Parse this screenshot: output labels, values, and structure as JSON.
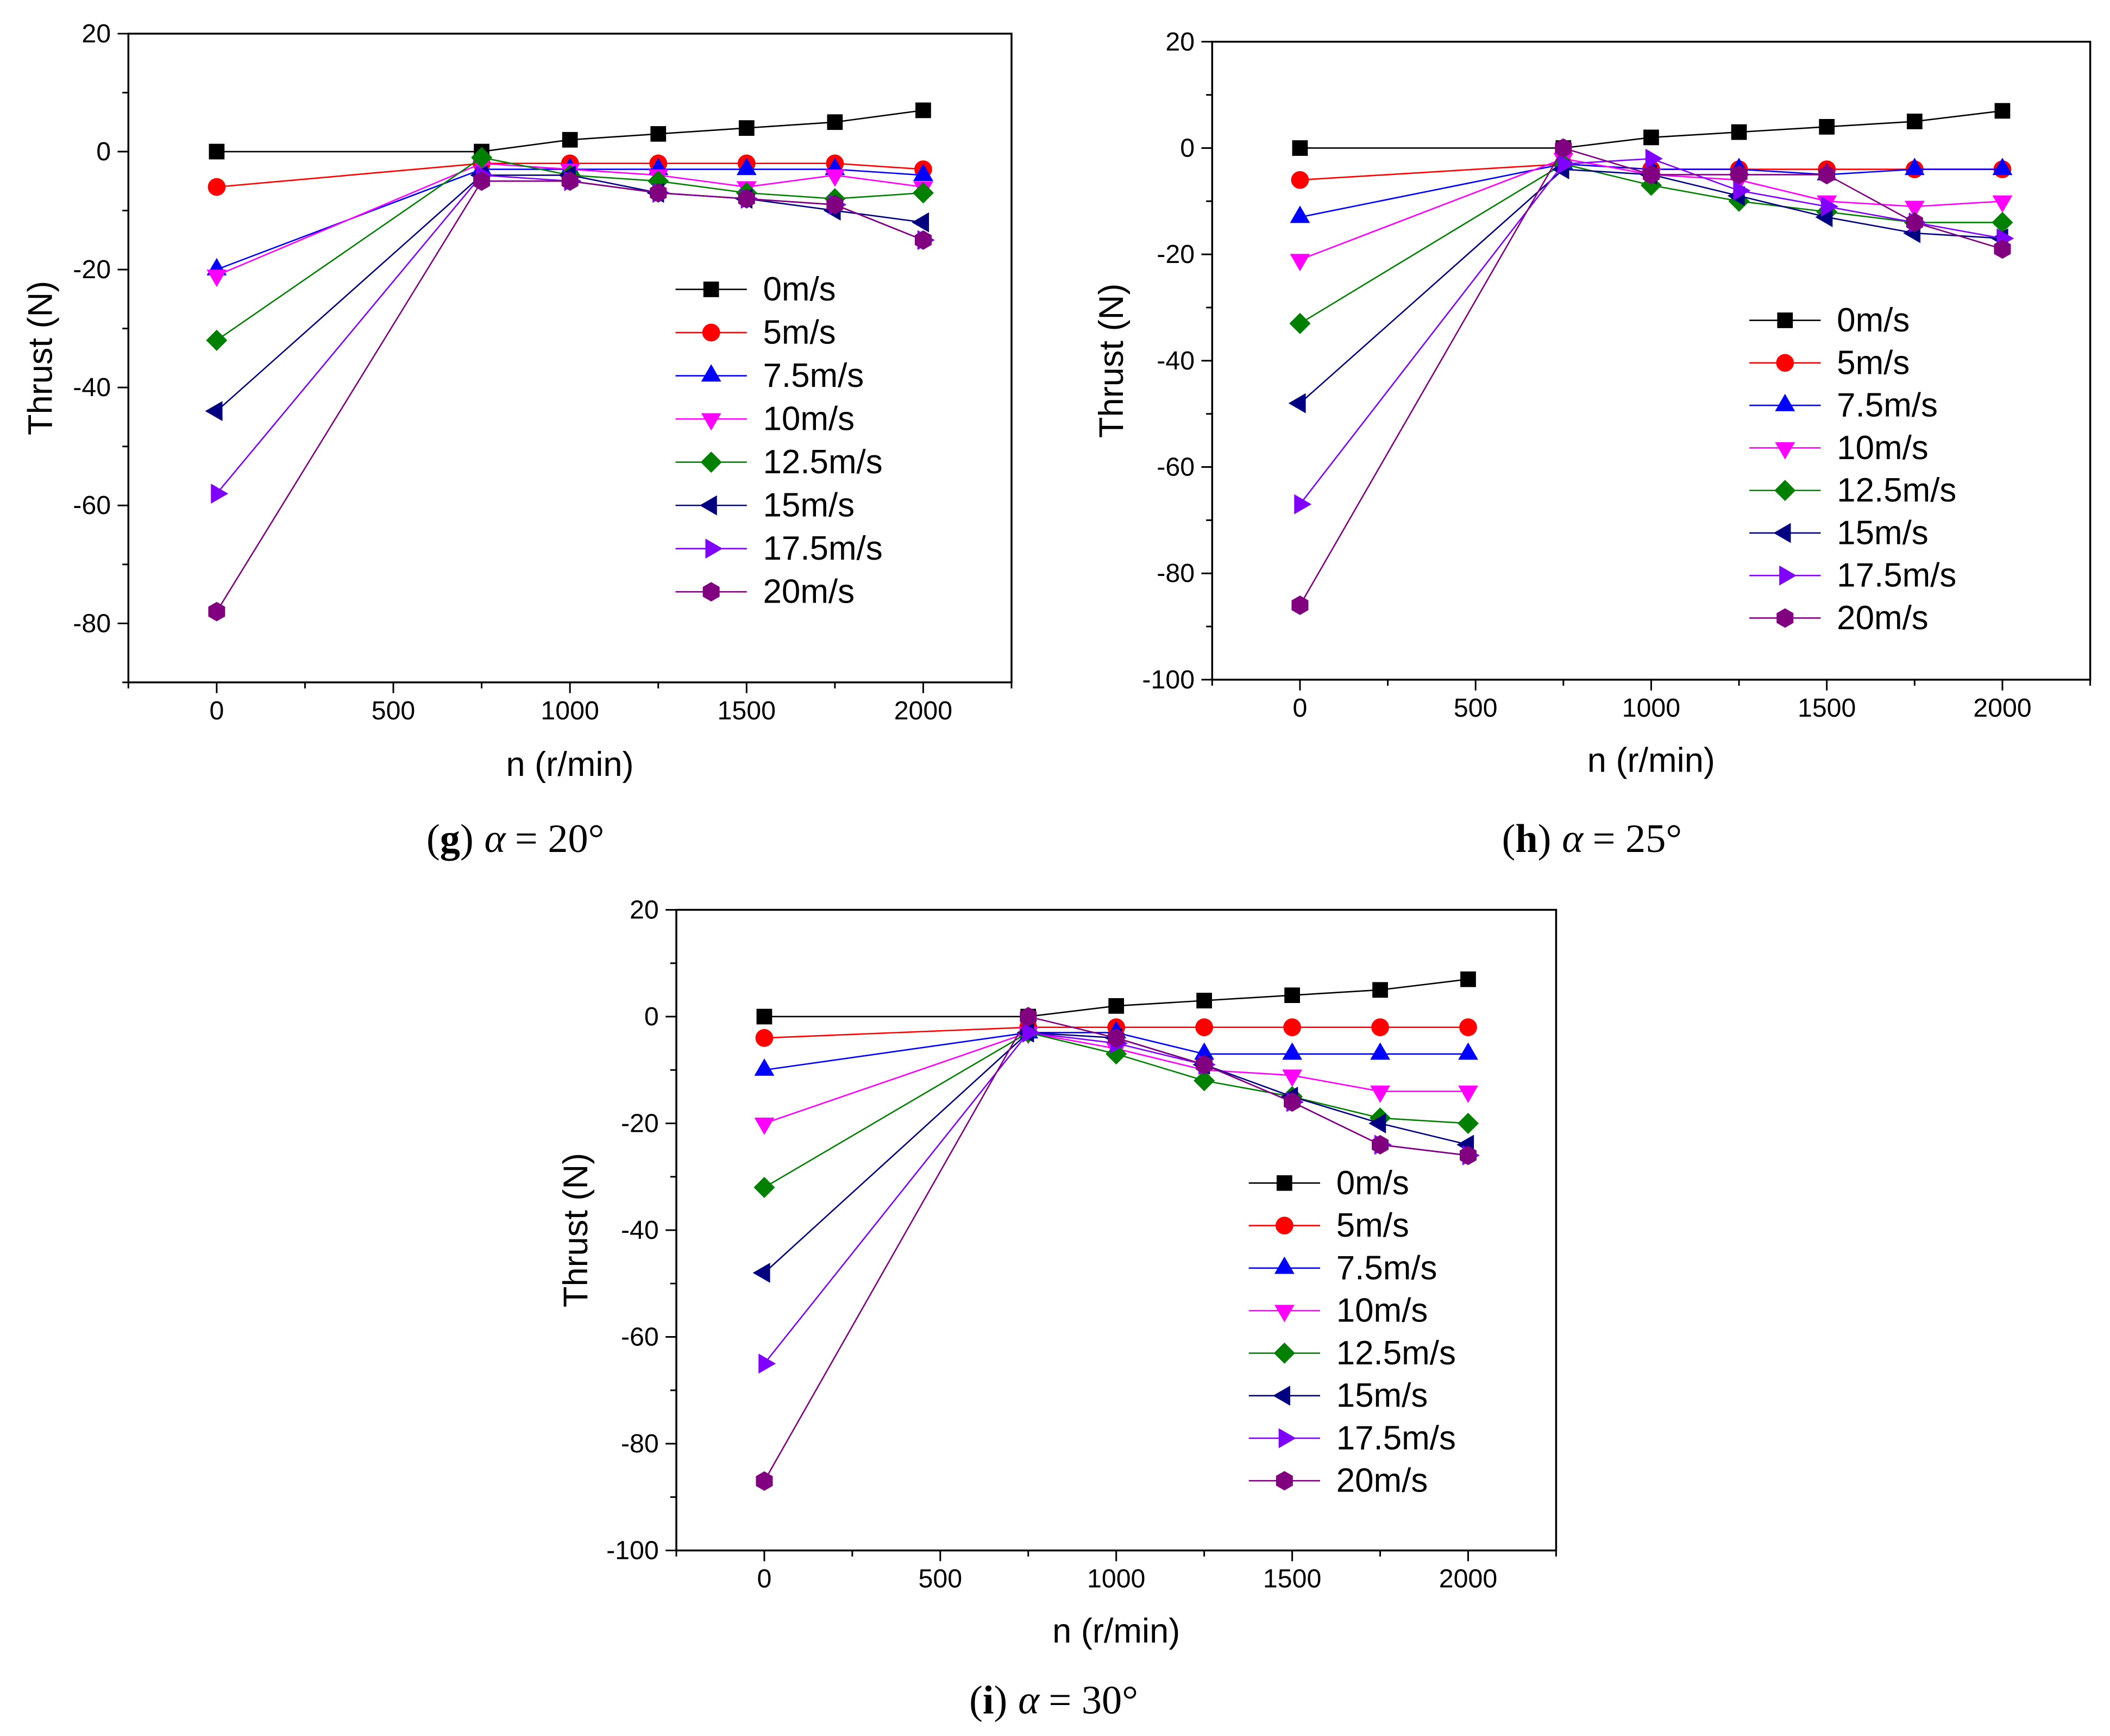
{
  "chart_data": [
    {
      "type": "line",
      "title": {
        "open": "(",
        "label": "g",
        "close": ")",
        "symbol": "α",
        "value": "= 20°"
      },
      "xlabel": "n (r/min)",
      "ylabel": "Thrust (N)",
      "xlim": [
        -250,
        2250
      ],
      "ylim": [
        -90,
        20
      ],
      "xticks": [
        "0",
        "500",
        "1000",
        "1500",
        "2000"
      ],
      "yticks": [
        "20",
        "0",
        "-20",
        "-40",
        "-60",
        "-80"
      ],
      "grid": false,
      "legend": "center-right",
      "x": [
        0,
        750,
        1000,
        1250,
        1500,
        1750,
        2000
      ],
      "series": [
        {
          "name": "0m/s",
          "color": "#000000",
          "marker": "square",
          "values": [
            0,
            0,
            2,
            3,
            4,
            5,
            7
          ]
        },
        {
          "name": "5m/s",
          "color": "#FF0000",
          "marker": "circle",
          "values": [
            -6,
            -2,
            -2,
            -2,
            -2,
            -2,
            -3
          ]
        },
        {
          "name": "7.5m/s",
          "color": "#0000FF",
          "marker": "triangle-up",
          "values": [
            -20,
            -3,
            -3,
            -3,
            -3,
            -3,
            -4
          ]
        },
        {
          "name": "10m/s",
          "color": "#FF00FF",
          "marker": "triangle-down",
          "values": [
            -21,
            -2,
            -3,
            -4,
            -6,
            -4,
            -6
          ]
        },
        {
          "name": "12.5m/s",
          "color": "#008000",
          "marker": "diamond",
          "values": [
            -32,
            -1,
            -4,
            -5,
            -7,
            -8,
            -7
          ]
        },
        {
          "name": "15m/s",
          "color": "#000080",
          "marker": "triangle-left",
          "values": [
            -44,
            -4,
            -4,
            -7,
            -8,
            -10,
            -12
          ]
        },
        {
          "name": "17.5m/s",
          "color": "#8000FF",
          "marker": "triangle-right",
          "values": [
            -58,
            -4,
            -5,
            -7,
            -8,
            -9,
            -15
          ]
        },
        {
          "name": "20m/s",
          "color": "#800080",
          "marker": "hexagon",
          "values": [
            -78,
            -5,
            -5,
            -7,
            -8,
            -9,
            -15
          ]
        }
      ]
    },
    {
      "type": "line",
      "title": {
        "open": "(",
        "label": "h",
        "close": ")",
        "symbol": "α",
        "value": "= 25°"
      },
      "xlabel": "n (r/min)",
      "ylabel": "Thrust (N)",
      "xlim": [
        -250,
        2250
      ],
      "ylim": [
        -100,
        20
      ],
      "xticks": [
        "0",
        "500",
        "1000",
        "1500",
        "2000"
      ],
      "yticks": [
        "20",
        "0",
        "-20",
        "-40",
        "-60",
        "-80",
        "-100"
      ],
      "grid": false,
      "legend": "center-right",
      "x": [
        0,
        750,
        1000,
        1250,
        1500,
        1750,
        2000
      ],
      "series": [
        {
          "name": "0m/s",
          "color": "#000000",
          "marker": "square",
          "values": [
            0,
            0,
            2,
            3,
            4,
            5,
            7
          ]
        },
        {
          "name": "5m/s",
          "color": "#FF0000",
          "marker": "circle",
          "values": [
            -6,
            -3,
            -4,
            -4,
            -4,
            -4,
            -4
          ]
        },
        {
          "name": "7.5m/s",
          "color": "#0000FF",
          "marker": "triangle-up",
          "values": [
            -13,
            -3,
            -4,
            -4,
            -5,
            -4,
            -4
          ]
        },
        {
          "name": "10m/s",
          "color": "#FF00FF",
          "marker": "triangle-down",
          "values": [
            -21,
            -2,
            -5,
            -6,
            -10,
            -11,
            -10
          ]
        },
        {
          "name": "12.5m/s",
          "color": "#008000",
          "marker": "diamond",
          "values": [
            -33,
            -3,
            -7,
            -10,
            -12,
            -14,
            -14
          ]
        },
        {
          "name": "15m/s",
          "color": "#000080",
          "marker": "triangle-left",
          "values": [
            -48,
            -4,
            -5,
            -9,
            -13,
            -16,
            -17
          ]
        },
        {
          "name": "17.5m/s",
          "color": "#8000FF",
          "marker": "triangle-right",
          "values": [
            -67,
            -3,
            -2,
            -8,
            -11,
            -14,
            -17
          ]
        },
        {
          "name": "20m/s",
          "color": "#800080",
          "marker": "hexagon",
          "values": [
            -86,
            0,
            -5,
            -5,
            -5,
            -14,
            -19
          ]
        }
      ]
    },
    {
      "type": "line",
      "title": {
        "open": "(",
        "label": "i",
        "close": ")",
        "symbol": "α",
        "value": "= 30°"
      },
      "xlabel": "n (r/min)",
      "ylabel": "Thrust (N)",
      "xlim": [
        -250,
        2250
      ],
      "ylim": [
        -100,
        20
      ],
      "xticks": [
        "0",
        "500",
        "1000",
        "1500",
        "2000"
      ],
      "yticks": [
        "20",
        "0",
        "-20",
        "-40",
        "-60",
        "-80",
        "-100"
      ],
      "grid": false,
      "legend": "lower-right",
      "x": [
        0,
        750,
        1000,
        1250,
        1500,
        1750,
        2000
      ],
      "series": [
        {
          "name": "0m/s",
          "color": "#000000",
          "marker": "square",
          "values": [
            0,
            0,
            2,
            3,
            4,
            5,
            7
          ]
        },
        {
          "name": "5m/s",
          "color": "#FF0000",
          "marker": "circle",
          "values": [
            -4,
            -2,
            -2,
            -2,
            -2,
            -2,
            -2
          ]
        },
        {
          "name": "7.5m/s",
          "color": "#0000FF",
          "marker": "triangle-up",
          "values": [
            -10,
            -3,
            -3,
            -7,
            -7,
            -7,
            -7
          ]
        },
        {
          "name": "10m/s",
          "color": "#FF00FF",
          "marker": "triangle-down",
          "values": [
            -20,
            -3,
            -6,
            -10,
            -11,
            -14,
            -14
          ]
        },
        {
          "name": "12.5m/s",
          "color": "#008000",
          "marker": "diamond",
          "values": [
            -32,
            -3,
            -7,
            -12,
            -15,
            -19,
            -20
          ]
        },
        {
          "name": "15m/s",
          "color": "#000080",
          "marker": "triangle-left",
          "values": [
            -48,
            -3,
            -4,
            -9,
            -15,
            -20,
            -24
          ]
        },
        {
          "name": "17.5m/s",
          "color": "#8000FF",
          "marker": "triangle-right",
          "values": [
            -65,
            -3,
            -5,
            -9,
            -16,
            -24,
            -26
          ]
        },
        {
          "name": "20m/s",
          "color": "#800080",
          "marker": "hexagon",
          "values": [
            -87,
            0,
            -4,
            -9,
            -16,
            -24,
            -26
          ]
        }
      ]
    }
  ]
}
